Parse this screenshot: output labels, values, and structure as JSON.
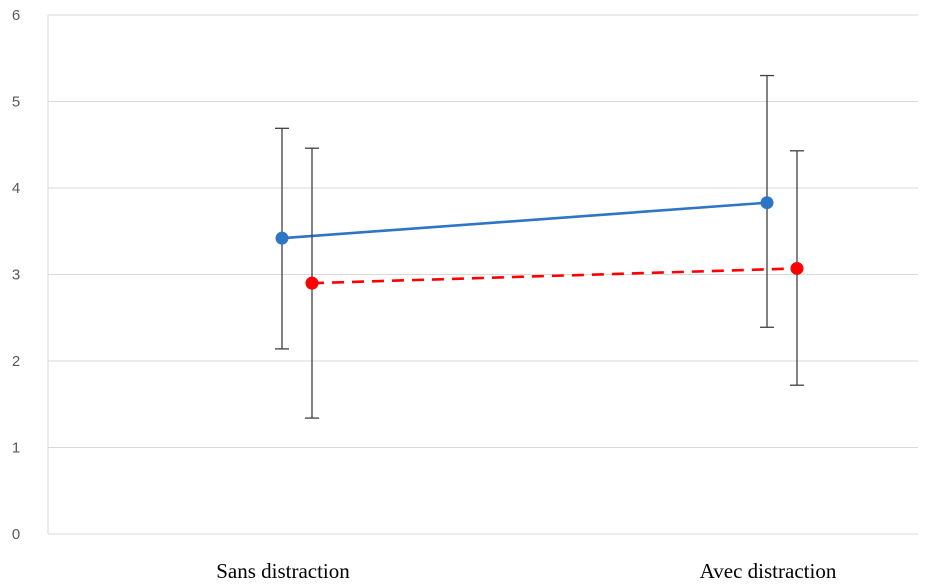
{
  "chart_data": {
    "type": "line",
    "title": "",
    "xlabel": "",
    "ylabel": "",
    "categories": [
      "Sans distraction",
      "Avec distraction"
    ],
    "ylim": [
      0,
      6
    ],
    "yticks": [
      0,
      1,
      2,
      3,
      4,
      5,
      6
    ],
    "grid": true,
    "legend": "none",
    "series": [
      {
        "color": "#2e75c6",
        "line_style": "solid",
        "values": [
          3.42,
          3.83
        ],
        "error_low": [
          2.14,
          2.39
        ],
        "error_high": [
          4.69,
          5.3
        ]
      },
      {
        "color": "#ff0000",
        "line_style": "dashed",
        "values": [
          2.9,
          3.07
        ],
        "error_low": [
          1.34,
          1.72
        ],
        "error_high": [
          4.46,
          4.43
        ]
      }
    ]
  }
}
